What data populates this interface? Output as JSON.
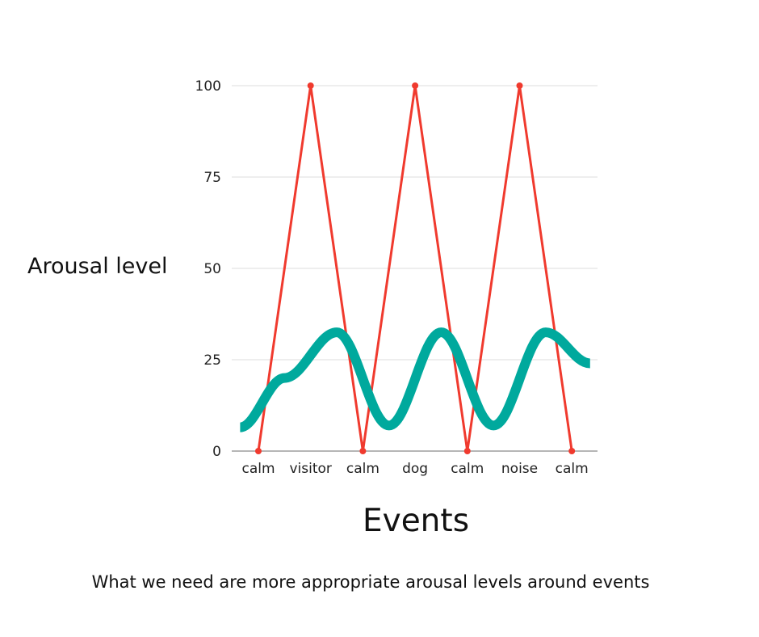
{
  "chart_data": {
    "type": "line",
    "title": "",
    "xlabel": "Events",
    "ylabel": "Arousal level",
    "caption": "What we need are more appropriate arousal levels around events",
    "categories": [
      "calm",
      "visitor",
      "calm",
      "dog",
      "calm",
      "noise",
      "calm"
    ],
    "ylim": [
      0,
      100
    ],
    "yticks": [
      "0",
      "25",
      "50",
      "75",
      "100"
    ],
    "grid": "horizontal",
    "legend": "none",
    "series": [
      {
        "color": "#f03a2e",
        "style": "line-with-markers",
        "values": [
          0,
          100,
          0,
          100,
          0,
          100,
          0
        ]
      },
      {
        "color": "#00a99d",
        "style": "smooth-thick-wave",
        "x": [
          -0.35,
          0.5,
          1.5,
          2.5,
          3.5,
          4.5,
          5.5,
          6.35
        ],
        "values": [
          6.5,
          20,
          32.5,
          7,
          32.5,
          7,
          32.5,
          24
        ]
      }
    ]
  }
}
